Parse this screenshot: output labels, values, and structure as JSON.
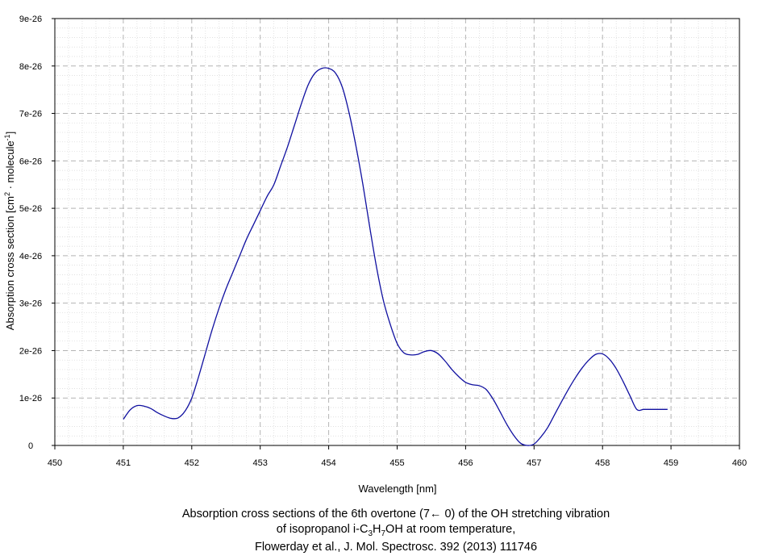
{
  "chart_data": {
    "type": "line",
    "xlabel": "Wavelength [nm]",
    "ylabel": {
      "prefix": "Absorption cross section [cm",
      "sup1": "2",
      "middle": " · molecule",
      "sup2": "-1",
      "suffix": "]"
    },
    "caption": {
      "line1": "Absorption cross sections of the 6th overtone (7← 0) of the OH stretching vibration",
      "line2": {
        "prefix": "of isopropanol i-C",
        "sub1": "3",
        "mid1": "H",
        "sub2": "7",
        "suffix": "OH at room temperature,"
      },
      "line3": "Flowerday et al., J. Mol. Spectrosc. 392 (2013) 111746"
    },
    "xlim": [
      450,
      460
    ],
    "ylim": [
      0,
      9e-26
    ],
    "xticks": [
      450,
      451,
      452,
      453,
      454,
      455,
      456,
      457,
      458,
      459,
      460
    ],
    "xtick_labels": [
      "450",
      "451",
      "452",
      "453",
      "454",
      "455",
      "456",
      "457",
      "458",
      "459",
      "460"
    ],
    "yticks": [
      0,
      1e-26,
      2e-26,
      3e-26,
      4e-26,
      5e-26,
      6e-26,
      7e-26,
      8e-26,
      9e-26
    ],
    "ytick_labels": [
      "0",
      "1e-26",
      "2e-26",
      "3e-26",
      "4e-26",
      "5e-26",
      "6e-26",
      "7e-26",
      "8e-26",
      "9e-26"
    ],
    "grid": true,
    "line_color": "#1010a0",
    "series": [
      {
        "x": [
          451.0,
          451.1,
          451.2,
          451.3,
          451.4,
          451.5,
          451.6,
          451.7,
          451.8,
          451.9,
          452.0,
          452.1,
          452.2,
          452.3,
          452.4,
          452.5,
          452.6,
          452.7,
          452.8,
          452.9,
          453.0,
          453.1,
          453.2,
          453.3,
          453.4,
          453.5,
          453.6,
          453.7,
          453.8,
          453.9,
          454.0,
          454.1,
          454.2,
          454.3,
          454.4,
          454.5,
          454.6,
          454.7,
          454.8,
          454.9,
          455.0,
          455.1,
          455.2,
          455.3,
          455.4,
          455.5,
          455.6,
          455.7,
          455.8,
          455.9,
          456.0,
          456.1,
          456.2,
          456.3,
          456.4,
          456.5,
          456.6,
          456.7,
          456.8,
          456.9,
          457.0,
          457.1,
          457.2,
          457.3,
          457.4,
          457.5,
          457.6,
          457.7,
          457.8,
          457.9,
          458.0,
          458.1,
          458.2,
          458.3,
          458.4,
          458.5,
          458.6,
          458.7,
          458.8,
          458.9,
          458.95
        ],
        "y": [
          5.5e-27,
          7.5e-27,
          8.4e-27,
          8.3e-27,
          7.8e-27,
          6.9e-27,
          6.2e-27,
          5.7e-27,
          5.8e-27,
          7.2e-27,
          1e-26,
          1.45e-26,
          1.95e-26,
          2.45e-26,
          2.9e-26,
          3.3e-26,
          3.65e-26,
          4e-26,
          4.35e-26,
          4.65e-26,
          4.95e-26,
          5.25e-26,
          5.5e-26,
          5.9e-26,
          6.3e-26,
          6.75e-26,
          7.2e-26,
          7.6e-26,
          7.85e-26,
          7.95e-26,
          7.95e-26,
          7.85e-26,
          7.55e-26,
          7e-26,
          6.3e-26,
          5.5e-26,
          4.6e-26,
          3.75e-26,
          3.05e-26,
          2.55e-26,
          2.15e-26,
          1.95e-26,
          1.91e-26,
          1.92e-26,
          1.98e-26,
          2e-26,
          1.93e-26,
          1.78e-26,
          1.6e-26,
          1.45e-26,
          1.33e-26,
          1.28e-26,
          1.26e-26,
          1.18e-26,
          9.8e-27,
          7.2e-27,
          4.5e-27,
          2.2e-27,
          5e-28,
          0,
          3e-28,
          1.8e-27,
          3.8e-27,
          6.5e-27,
          9.2e-27,
          1.18e-26,
          1.42e-26,
          1.63e-26,
          1.8e-26,
          1.92e-26,
          1.93e-26,
          1.82e-26,
          1.62e-26,
          1.35e-26,
          1.05e-26,
          7.6e-27,
          7.6e-27,
          7.6e-27,
          7.6e-27,
          7.6e-27,
          7.6e-27
        ]
      }
    ]
  }
}
